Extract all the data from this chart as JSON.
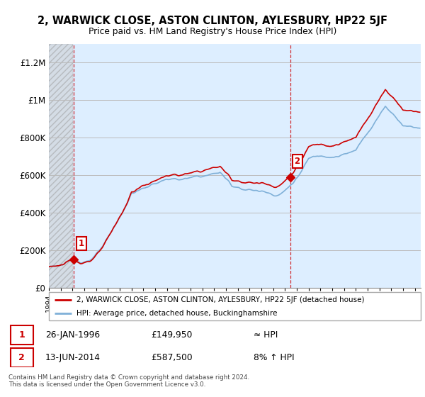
{
  "title": "2, WARWICK CLOSE, ASTON CLINTON, AYLESBURY, HP22 5JF",
  "subtitle": "Price paid vs. HM Land Registry's House Price Index (HPI)",
  "ylabel_ticks": [
    "£0",
    "£200K",
    "£400K",
    "£600K",
    "£800K",
    "£1M",
    "£1.2M"
  ],
  "ytick_values": [
    0,
    200000,
    400000,
    600000,
    800000,
    1000000,
    1200000
  ],
  "ylim": [
    0,
    1300000
  ],
  "xlim_start": 1994,
  "xlim_end": 2025.5,
  "sale1_date": 1996.07,
  "sale1_price": 149950,
  "sale1_label": "1",
  "sale2_date": 2014.44,
  "sale2_price": 587500,
  "sale2_label": "2",
  "hpi_line_color": "#7fb0d8",
  "price_line_color": "#cc0000",
  "marker_color": "#cc0000",
  "plot_bg_color": "#ddeeff",
  "hatch_color": "#c8c8c8",
  "grid_color": "#bbbbbb",
  "legend_line1": "2, WARWICK CLOSE, ASTON CLINTON, AYLESBURY, HP22 5JF (detached house)",
  "legend_line2": "HPI: Average price, detached house, Buckinghamshire",
  "table_row1": [
    "1",
    "26-JAN-1996",
    "£149,950",
    "≈ HPI"
  ],
  "table_row2": [
    "2",
    "13-JUN-2014",
    "£587,500",
    "8% ↑ HPI"
  ],
  "footnote": "Contains HM Land Registry data © Crown copyright and database right 2024.\nThis data is licensed under the Open Government Licence v3.0.",
  "vline_date1": 1996.07,
  "vline_date2": 2014.44
}
